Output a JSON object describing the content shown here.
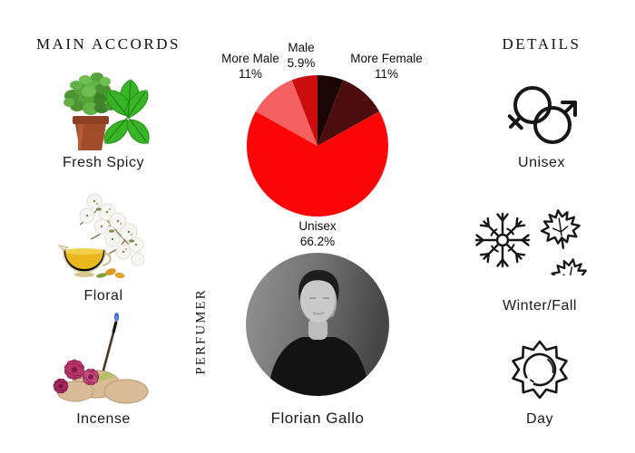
{
  "accords": {
    "heading": "MAIN ACCORDS",
    "items": [
      {
        "label": "Fresh Spicy",
        "image": "potted-herb-and-mint-leaves-photo"
      },
      {
        "label": "Floral",
        "image": "white-blossoms-and-oil-pitcher-photo"
      },
      {
        "label": "Incense",
        "image": "orchid-stones-and-incense-stick-photo"
      }
    ]
  },
  "chart_data": {
    "type": "pie",
    "title": "",
    "direction": "clockwise",
    "start_angle_deg": 0,
    "radius_px": 78,
    "slices": [
      {
        "label": "",
        "pct_label": "",
        "value": 5.9,
        "color": "#1c0505"
      },
      {
        "label": "More Female",
        "pct_label": "11%",
        "value": 11,
        "color": "#4e0d0d"
      },
      {
        "label": "Unisex",
        "pct_label": "66.2%",
        "value": 66.2,
        "color": "#fb0707"
      },
      {
        "label": "More Male",
        "pct_label": "11%",
        "value": 11,
        "color": "#f56161"
      },
      {
        "label": "Male",
        "pct_label": "5.9%",
        "value": 5.9,
        "color": "#cd0d0d"
      }
    ]
  },
  "perfumer": {
    "section_label": "PERFUMER",
    "name": "Florian Gallo",
    "photo": "black-and-white-portrait-man-in-black-sweater"
  },
  "details": {
    "heading": "DETAILS",
    "items": [
      {
        "label": "Unisex",
        "icon": "gender-unisex-icon"
      },
      {
        "label": "Winter/Fall",
        "icon": "snowflake-and-maple-leaves-icon"
      },
      {
        "label": "Day",
        "icon": "sun-icon"
      }
    ]
  }
}
